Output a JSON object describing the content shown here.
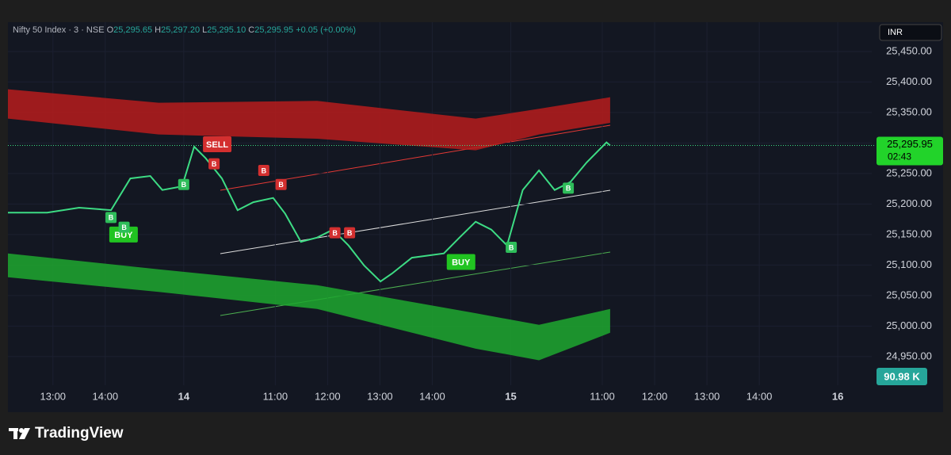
{
  "header": {
    "symbol": "Nifty 50 Index · 3 · NSE",
    "open_label": "O",
    "open": "25,295.65",
    "high_label": "H",
    "high": "25,297.20",
    "low_label": "L",
    "low": "25,295.10",
    "close_label": "C",
    "close": "25,295.95",
    "change": "+0.05 (+0.00%)"
  },
  "currency": "INR",
  "last_price_label": "25,295.95",
  "countdown": "02:43",
  "volume_label": "90.98 K",
  "brand": "TradingView",
  "chart_data": {
    "type": "line",
    "xlim": [
      -0.86,
      15.65
    ],
    "ylim": [
      24903,
      25498
    ],
    "xticks": [
      {
        "value": 0,
        "label": "13:00"
      },
      {
        "value": 1,
        "label": "14:00"
      },
      {
        "value": 2.5,
        "label": "14"
      },
      {
        "value": 4.25,
        "label": "11:00"
      },
      {
        "value": 5.25,
        "label": "12:00"
      },
      {
        "value": 6.25,
        "label": "13:00"
      },
      {
        "value": 7.25,
        "label": "14:00"
      },
      {
        "value": 8.75,
        "label": "15"
      },
      {
        "value": 10.5,
        "label": "11:00"
      },
      {
        "value": 11.5,
        "label": "12:00"
      },
      {
        "value": 12.5,
        "label": "13:00"
      },
      {
        "value": 13.5,
        "label": "14:00"
      },
      {
        "value": 15,
        "label": "16"
      }
    ],
    "yticks": [
      {
        "value": 24950,
        "label": "24,950.00"
      },
      {
        "value": 25000,
        "label": "25,000.00"
      },
      {
        "value": 25050,
        "label": "25,050.00"
      },
      {
        "value": 25100,
        "label": "25,100.00"
      },
      {
        "value": 25150,
        "label": "25,150.00"
      },
      {
        "value": 25200,
        "label": "25,200.00"
      },
      {
        "value": 25250,
        "label": "25,250.00"
      },
      {
        "value": 25300,
        "label": "25,300.00"
      },
      {
        "value": 25350,
        "label": "25,350.00"
      },
      {
        "value": 25400,
        "label": "25,400.00"
      },
      {
        "value": 25450,
        "label": "25,450.00"
      }
    ],
    "x": [
      -0.86,
      -0.11,
      0.5,
      1.11,
      1.48,
      1.86,
      2.09,
      2.47,
      2.7,
      2.92,
      3.23,
      3.53,
      3.83,
      4.21,
      4.44,
      4.74,
      5.05,
      5.35,
      5.65,
      5.95,
      6.26,
      6.48,
      6.86,
      7.47,
      7.77,
      8.08,
      8.38,
      8.68,
      8.98,
      9.29,
      9.59,
      9.89,
      10.2,
      10.58,
      10.65
    ],
    "series": [
      {
        "color": "#3ddc84",
        "values": [
          25186,
          25186,
          25194,
          25190,
          25242,
          25246,
          25223,
          25229,
          25294,
          25275,
          25242,
          25190,
          25203,
          25210,
          25184,
          25138,
          25145,
          25158,
          25132,
          25099,
          25073,
          25086,
          25112,
          25119,
          25145,
          25171,
          25158,
          25132,
          25223,
          25255,
          25223,
          25236,
          25268,
          25301,
          25295.95
        ]
      }
    ],
    "last_price": 25295.95,
    "band_x": [
      -0.86,
      2.02,
      5.05,
      8.08,
      9.29,
      10.65
    ],
    "bands": [
      {
        "color": "#b71c1c",
        "upper": [
          25388,
          25366,
          25369,
          25340,
          25356,
          25375
        ],
        "lower": [
          25340,
          25314,
          25307,
          25288,
          25314,
          25333
        ]
      },
      {
        "color": "#1fa82f",
        "upper": [
          25119,
          25093,
          25067,
          25021,
          25002,
          25028
        ],
        "lower": [
          25080,
          25056,
          25028,
          24963,
          24944,
          24989
        ]
      }
    ],
    "signals": [
      {
        "text": "BUY",
        "x": 1.35,
        "y": 25150,
        "color": "#21c421"
      },
      {
        "text": "SELL",
        "x": 3.14,
        "y": 25298,
        "color": "#d32f2f"
      },
      {
        "text": "BUY",
        "x": 7.8,
        "y": 25105,
        "color": "#21c421"
      },
      {
        "text": "B",
        "x": 1.11,
        "y": 25178,
        "color": "#2ebd5a"
      },
      {
        "text": "B",
        "x": 1.36,
        "y": 25162,
        "color": "#2ebd5a"
      },
      {
        "text": "B",
        "x": 2.5,
        "y": 25232,
        "color": "#2ebd5a"
      },
      {
        "text": "B",
        "x": 8.76,
        "y": 25129,
        "color": "#2ebd5a"
      },
      {
        "text": "B",
        "x": 9.85,
        "y": 25226,
        "color": "#2ebd5a"
      },
      {
        "text": "B",
        "x": 3.08,
        "y": 25266,
        "color": "#d32f2f"
      },
      {
        "text": "B",
        "x": 4.03,
        "y": 25255,
        "color": "#d32f2f"
      },
      {
        "text": "B",
        "x": 4.36,
        "y": 25232,
        "color": "#d32f2f"
      },
      {
        "text": "B",
        "x": 5.39,
        "y": 25153,
        "color": "#d32f2f"
      },
      {
        "text": "B",
        "x": 5.67,
        "y": 25153,
        "color": "#d32f2f"
      }
    ]
  }
}
